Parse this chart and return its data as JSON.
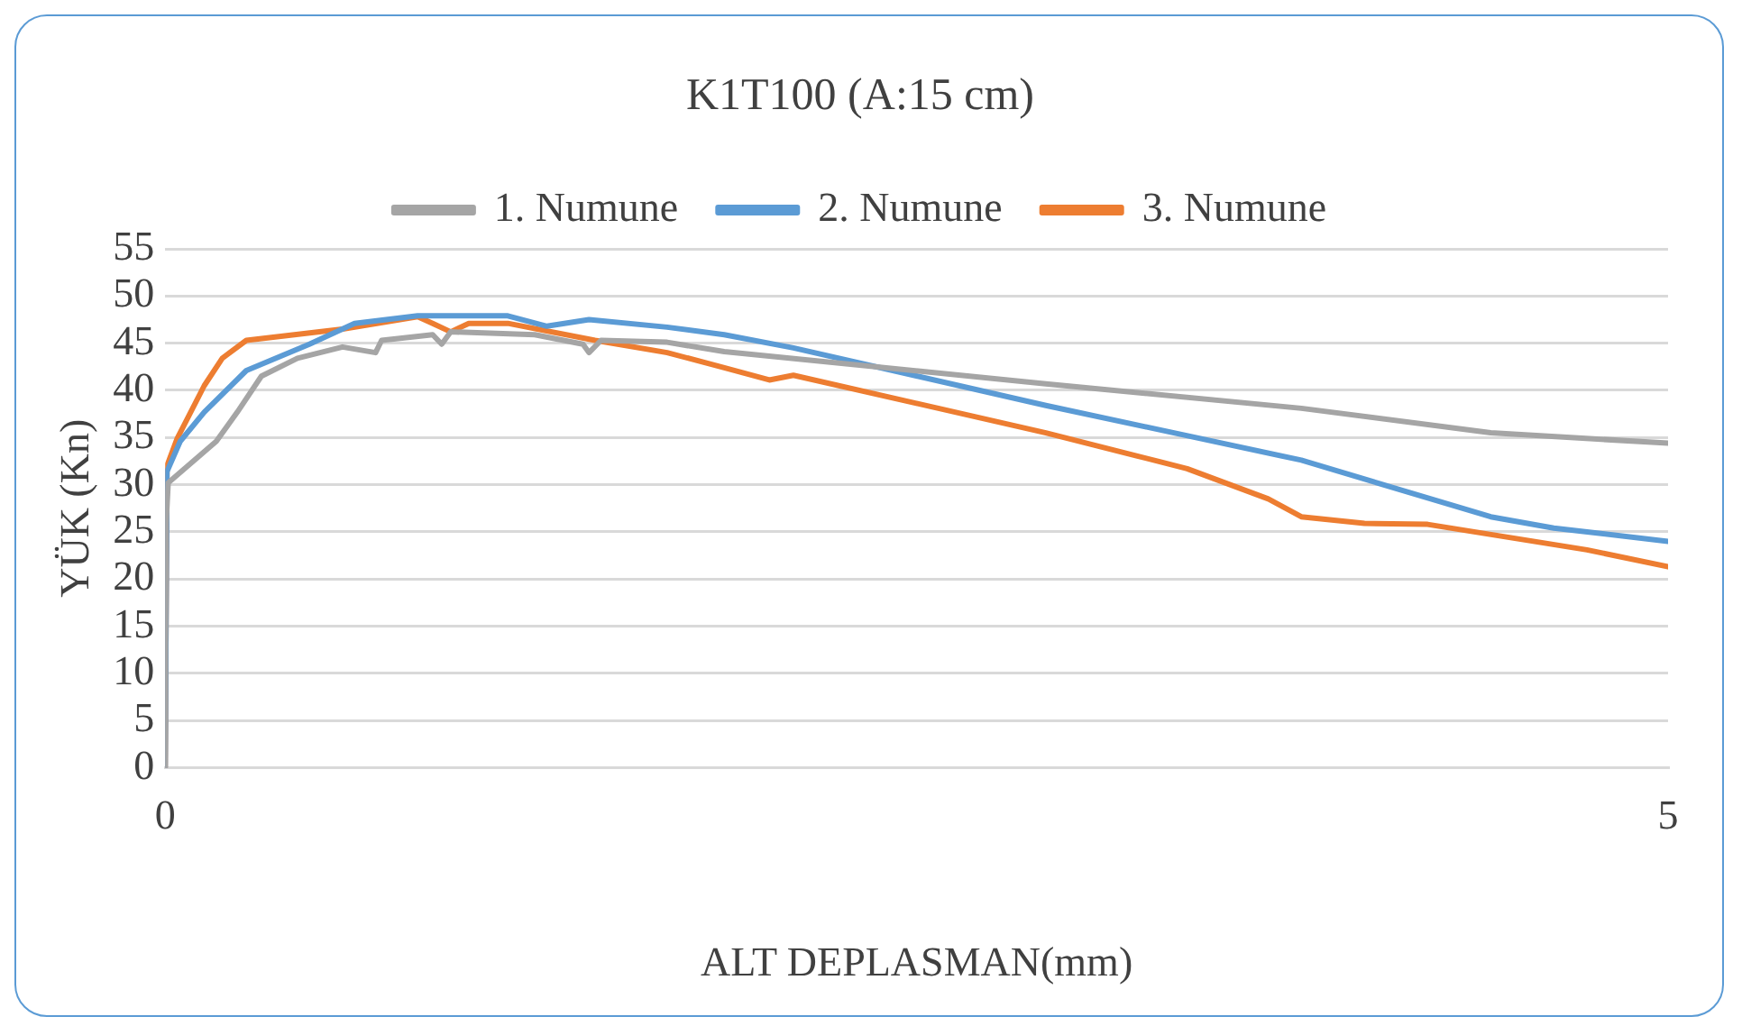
{
  "chart_data": {
    "type": "line",
    "title": "K1T100 (A:15 cm)",
    "xlabel": "ALT DEPLASMAN(mm)",
    "ylabel": "YÜK (Kn)",
    "xlim": [
      0,
      5
    ],
    "xticks": [
      0,
      5
    ],
    "ylim": [
      0,
      55
    ],
    "yticks": [
      0,
      5,
      10,
      15,
      20,
      25,
      30,
      35,
      40,
      45,
      50,
      55
    ],
    "grid": "y",
    "legend": "top",
    "marker": "none",
    "line_style": "solid",
    "series": [
      {
        "name": "1. Numune",
        "color": "#a5a5a5",
        "x": [
          0,
          0.003,
          0.01,
          0.17,
          0.24,
          0.32,
          0.44,
          0.59,
          0.7,
          0.72,
          0.89,
          0.92,
          0.95,
          1.23,
          1.39,
          1.41,
          1.45,
          1.67,
          1.86,
          2.93,
          3.78,
          4.41,
          5
        ],
        "values": [
          0,
          25.8,
          30.2,
          34.6,
          37.7,
          41.5,
          43.4,
          44.6,
          44,
          45.3,
          45.9,
          44.9,
          46.2,
          45.9,
          44.9,
          44,
          45.3,
          45.1,
          44.1,
          40.7,
          38.1,
          35.5,
          34.4
        ]
      },
      {
        "name": "2. Numune",
        "color": "#5b9bd5",
        "x": [
          0,
          0.006,
          0.05,
          0.13,
          0.27,
          0.48,
          0.63,
          0.84,
          1.14,
          1.27,
          1.41,
          1.67,
          1.86,
          2.09,
          2.93,
          3.78,
          4.41,
          4.62,
          5
        ],
        "values": [
          0,
          31.4,
          34.6,
          37.7,
          42.1,
          44.9,
          47.1,
          47.9,
          47.9,
          46.8,
          47.5,
          46.7,
          45.9,
          44.5,
          38.4,
          32.6,
          26.6,
          25.4,
          24
        ]
      },
      {
        "name": "3. Numune",
        "color": "#ed7d31",
        "x": [
          0,
          0.006,
          0.04,
          0.13,
          0.19,
          0.27,
          0.59,
          0.84,
          0.89,
          0.95,
          1.01,
          1.14,
          1.43,
          1.67,
          1.86,
          2.01,
          2.09,
          2.93,
          3.4,
          3.67,
          3.78,
          3.99,
          4.2,
          4.73,
          5
        ],
        "values": [
          0,
          32,
          34.9,
          40.5,
          43.4,
          45.3,
          46.5,
          47.8,
          47.1,
          46.2,
          47.1,
          47.1,
          45.3,
          44,
          42.4,
          41.1,
          41.6,
          35.5,
          31.7,
          28.5,
          26.6,
          25.9,
          25.8,
          23.1,
          21.3
        ]
      }
    ]
  }
}
